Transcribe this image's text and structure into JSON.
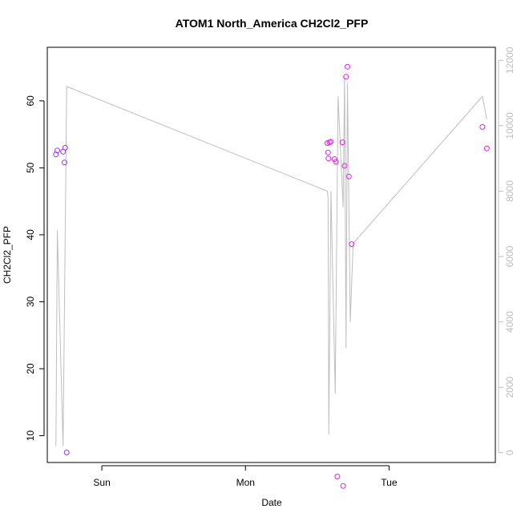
{
  "chart_data": {
    "type": "scatter",
    "title": "ATOM1 North_America CH2Cl2_PFP",
    "xlabel": "Date",
    "ylabel": "CH2Cl2_PFP",
    "x_ticks": [
      "Sun",
      "Mon",
      "Tue"
    ],
    "x_range_days_from_sun": [
      -0.38,
      2.74
    ],
    "ylim_left": [
      6.0,
      68.0
    ],
    "y_ticks_left": [
      10,
      20,
      30,
      40,
      50,
      60
    ],
    "ylim_right": [
      -300,
      12400
    ],
    "y_ticks_right": [
      0,
      2000,
      4000,
      6000,
      8000,
      10000,
      12000
    ],
    "grid": false,
    "colors": {
      "points_early": "#9b30ff",
      "points_late": "#e020e0",
      "right_series_line": "#bebebe",
      "right_axis": "#bebebe"
    },
    "points": [
      {
        "t": -0.32,
        "y": 52.0
      },
      {
        "t": -0.31,
        "y": 52.6
      },
      {
        "t": -0.27,
        "y": 52.4
      },
      {
        "t": -0.26,
        "y": 50.8
      },
      {
        "t": -0.255,
        "y": 53.0
      },
      {
        "t": -0.245,
        "y": 7.5
      },
      {
        "t": 1.57,
        "y": 53.7
      },
      {
        "t": 1.575,
        "y": 52.3
      },
      {
        "t": 1.578,
        "y": 51.4
      },
      {
        "t": 1.585,
        "y": 53.8
      },
      {
        "t": 1.595,
        "y": 53.9
      },
      {
        "t": 1.62,
        "y": 51.3
      },
      {
        "t": 1.63,
        "y": 50.9
      },
      {
        "t": 1.64,
        "y": 3.9
      },
      {
        "t": 1.675,
        "y": 53.8
      },
      {
        "t": 1.68,
        "y": 2.5
      },
      {
        "t": 1.69,
        "y": 50.3
      },
      {
        "t": 1.7,
        "y": 63.6
      },
      {
        "t": 1.71,
        "y": 65.1
      },
      {
        "t": 1.72,
        "y": 48.7
      },
      {
        "t": 1.74,
        "y": 38.6
      },
      {
        "t": 2.65,
        "y": 56.1
      },
      {
        "t": 2.68,
        "y": 52.9
      }
    ],
    "right_series": [
      {
        "t": -0.32,
        "v": 200
      },
      {
        "t": -0.31,
        "v": 6800
      },
      {
        "t": -0.27,
        "v": 200
      },
      {
        "t": -0.245,
        "v": 11200
      },
      {
        "t": 1.57,
        "v": 8000
      },
      {
        "t": 1.575,
        "v": 7800
      },
      {
        "t": 1.58,
        "v": 550
      },
      {
        "t": 1.595,
        "v": 8000
      },
      {
        "t": 1.625,
        "v": 1800
      },
      {
        "t": 1.645,
        "v": 10900
      },
      {
        "t": 1.68,
        "v": 7500
      },
      {
        "t": 1.69,
        "v": 11500
      },
      {
        "t": 1.7,
        "v": 3200
      },
      {
        "t": 1.71,
        "v": 11300
      },
      {
        "t": 1.73,
        "v": 4000
      },
      {
        "t": 1.75,
        "v": 6400
      },
      {
        "t": 2.65,
        "v": 10900
      },
      {
        "t": 2.68,
        "v": 10200
      }
    ]
  }
}
